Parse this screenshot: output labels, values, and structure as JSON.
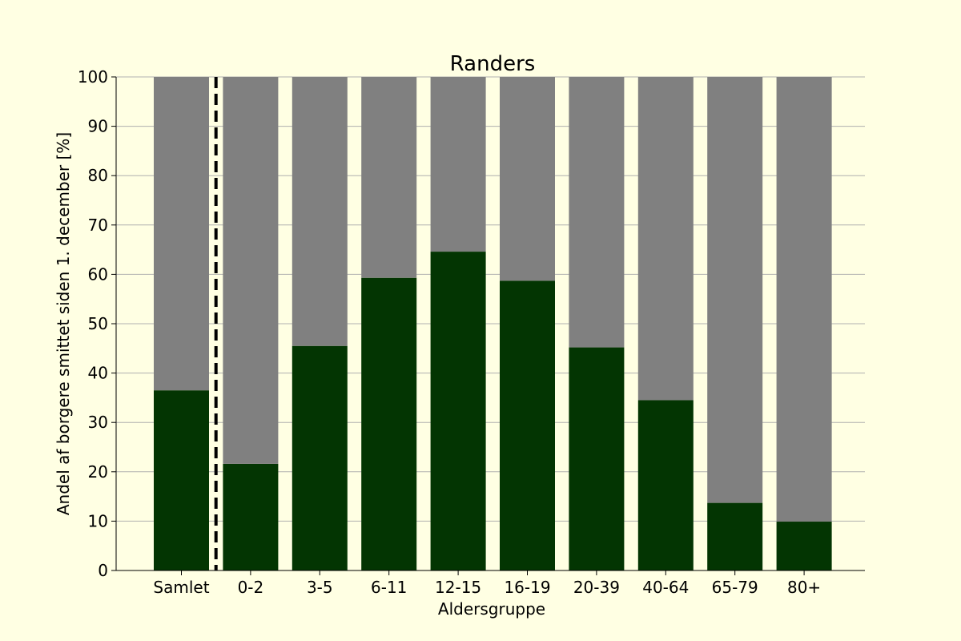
{
  "chart_data": {
    "type": "bar",
    "stacked": true,
    "title": "Randers",
    "xlabel": "Aldersgruppe",
    "ylabel": "Andel af borgere smittet siden 1. december [%]",
    "categories": [
      "Samlet",
      "0-2",
      "3-5",
      "6-11",
      "12-15",
      "16-19",
      "20-39",
      "40-64",
      "65-79",
      "80+"
    ],
    "series": [
      {
        "values": [
          36.5,
          21.6,
          45.5,
          59.3,
          64.6,
          58.7,
          45.2,
          34.5,
          13.7,
          9.9
        ],
        "color": "#033502"
      },
      {
        "values": [
          63.5,
          78.4,
          54.5,
          40.7,
          35.4,
          41.3,
          54.8,
          65.5,
          86.3,
          90.1
        ],
        "color": "#808080"
      }
    ],
    "ylim": [
      0,
      100
    ],
    "yticks": [
      0,
      10,
      20,
      30,
      40,
      50,
      60,
      70,
      80,
      90,
      100
    ],
    "grid": "horizontal",
    "separator_after_category": "Samlet",
    "background": "#ffffe3"
  }
}
